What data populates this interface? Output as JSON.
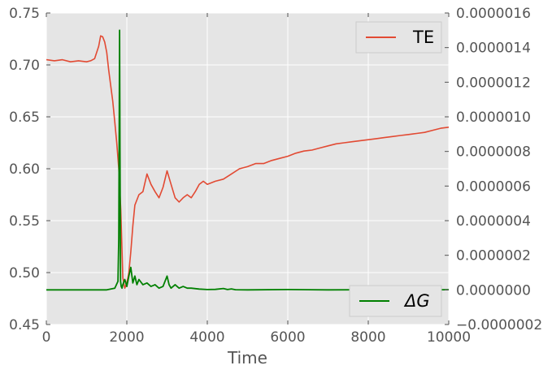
{
  "chart_data": {
    "type": "line",
    "title": "",
    "xlabel": "Time",
    "ylabel_left": "",
    "ylabel_right": "",
    "xlim": [
      0,
      10000
    ],
    "ylim_left": [
      0.45,
      0.75
    ],
    "ylim_right": [
      -2e-07,
      1.6e-06
    ],
    "x_ticks": [
      0,
      2000,
      4000,
      6000,
      8000,
      10000
    ],
    "x_tick_labels": [
      "0",
      "2000",
      "4000",
      "6000",
      "8000",
      "10000"
    ],
    "y_left_ticks": [
      0.45,
      0.5,
      0.55,
      0.6,
      0.65,
      0.7,
      0.75
    ],
    "y_left_tick_labels": [
      "0.45",
      "0.50",
      "0.55",
      "0.60",
      "0.65",
      "0.70",
      "0.75"
    ],
    "y_right_ticks": [
      -2e-07,
      0,
      2e-07,
      4e-07,
      6e-07,
      8e-07,
      1e-06,
      1.2e-06,
      1.4e-06,
      1.6e-06
    ],
    "y_right_tick_labels": [
      "−0.0000002",
      "0.0000000",
      "0.0000002",
      "0.0000004",
      "0.0000006",
      "0.0000008",
      "0.0000010",
      "0.0000012",
      "0.0000014",
      "0.0000016"
    ],
    "grid": true,
    "legend_te_placement": "top-right",
    "legend_dg_placement": "bottom-right",
    "background_color": "#e5e5e5",
    "grid_color": "#ffffff",
    "series": [
      {
        "name": "TE",
        "axis": "left",
        "color": "#e24a33",
        "x": [
          0,
          200,
          400,
          600,
          800,
          1000,
          1100,
          1200,
          1300,
          1350,
          1400,
          1450,
          1500,
          1550,
          1600,
          1650,
          1700,
          1750,
          1800,
          1850,
          1900,
          1950,
          2000,
          2050,
          2100,
          2150,
          2200,
          2300,
          2400,
          2500,
          2600,
          2700,
          2800,
          2900,
          3000,
          3100,
          3200,
          3300,
          3400,
          3500,
          3600,
          3700,
          3800,
          3900,
          4000,
          4200,
          4400,
          4600,
          4800,
          5000,
          5200,
          5400,
          5600,
          5800,
          6000,
          6200,
          6400,
          6600,
          6800,
          7000,
          7200,
          7400,
          7600,
          7800,
          8000,
          8200,
          8400,
          8600,
          8800,
          9000,
          9200,
          9400,
          9600,
          9800,
          10000
        ],
        "values": [
          0.705,
          0.704,
          0.705,
          0.703,
          0.704,
          0.703,
          0.704,
          0.706,
          0.718,
          0.728,
          0.727,
          0.722,
          0.712,
          0.695,
          0.68,
          0.665,
          0.645,
          0.625,
          0.6,
          0.56,
          0.495,
          0.485,
          0.49,
          0.5,
          0.52,
          0.545,
          0.565,
          0.575,
          0.578,
          0.595,
          0.585,
          0.578,
          0.572,
          0.582,
          0.598,
          0.585,
          0.572,
          0.568,
          0.572,
          0.575,
          0.572,
          0.578,
          0.585,
          0.588,
          0.585,
          0.588,
          0.59,
          0.595,
          0.6,
          0.602,
          0.605,
          0.605,
          0.608,
          0.61,
          0.612,
          0.615,
          0.617,
          0.618,
          0.62,
          0.622,
          0.624,
          0.625,
          0.626,
          0.627,
          0.628,
          0.629,
          0.63,
          0.631,
          0.632,
          0.633,
          0.634,
          0.635,
          0.637,
          0.639,
          0.64
        ]
      },
      {
        "name": "ΔG",
        "axis": "right",
        "color": "#008000",
        "x": [
          0,
          1000,
          1500,
          1700,
          1780,
          1800,
          1820,
          1830,
          1845,
          1860,
          1880,
          1900,
          1950,
          2000,
          2050,
          2100,
          2150,
          2200,
          2250,
          2300,
          2400,
          2500,
          2600,
          2700,
          2800,
          2900,
          3000,
          3050,
          3100,
          3200,
          3300,
          3400,
          3500,
          3600,
          3800,
          4000,
          4200,
          4400,
          4500,
          4600,
          4700,
          5000,
          6000,
          7000,
          8000,
          9000,
          10000
        ],
        "values": [
          0,
          0,
          0,
          1e-08,
          5e-08,
          3e-07,
          1.5e-06,
          8e-07,
          5e-08,
          2e-08,
          1e-08,
          3e-08,
          6e-08,
          2e-08,
          8e-08,
          1.3e-07,
          4e-08,
          8e-08,
          3e-08,
          6e-08,
          3e-08,
          4e-08,
          2e-08,
          3e-08,
          1e-08,
          2e-08,
          8e-08,
          3e-08,
          1e-08,
          3e-08,
          1e-08,
          2e-08,
          1e-08,
          1e-08,
          5e-09,
          2e-09,
          3e-09,
          8e-09,
          2e-09,
          6e-09,
          1e-09,
          0,
          2e-09,
          0,
          1e-09,
          0,
          1e-09
        ]
      }
    ]
  }
}
